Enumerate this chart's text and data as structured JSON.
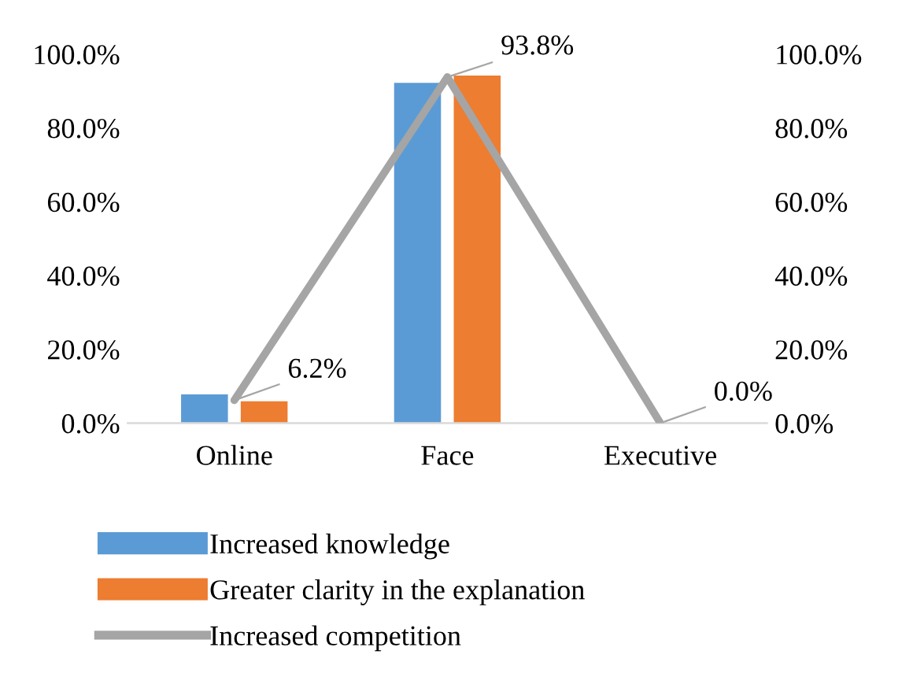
{
  "chart_data": {
    "type": "bar",
    "categories": [
      "Online",
      "Face",
      "Executive"
    ],
    "series": [
      {
        "name": "Increased knowledge",
        "color": "#5b9bd5",
        "values": [
          7.8,
          92.2,
          0
        ]
      },
      {
        "name": "Greater clarity in the explanation",
        "color": "#ed7d31",
        "values": [
          5.9,
          94.2,
          0
        ]
      },
      {
        "name": "Increased competition",
        "type": "line",
        "axis": "y2",
        "color": "#a5a5a5",
        "values": [
          6.2,
          93.8,
          0.0
        ],
        "value_labels": [
          "6.2%",
          "93.8%",
          "0.0%"
        ]
      }
    ],
    "ylim": [
      0,
      100
    ],
    "yticks": [
      {
        "value": 0,
        "label": "0.0%"
      },
      {
        "value": 20,
        "label": "20.0%"
      },
      {
        "value": 40,
        "label": "40.0%"
      },
      {
        "value": 60,
        "label": "60.0%"
      },
      {
        "value": 80,
        "label": "80.0%"
      },
      {
        "value": 100,
        "label": "100.0%"
      }
    ],
    "y2lim": [
      0,
      100
    ],
    "y2ticks": [
      {
        "value": 0,
        "label": "0.0%"
      },
      {
        "value": 20,
        "label": "20.0%"
      },
      {
        "value": 40,
        "label": "40.0%"
      },
      {
        "value": 60,
        "label": "60.0%"
      },
      {
        "value": 80,
        "label": "80.0%"
      },
      {
        "value": 100,
        "label": "100.0%"
      }
    ],
    "grid": false,
    "legend": "bottom",
    "marker": "none",
    "line_style": "solid"
  }
}
